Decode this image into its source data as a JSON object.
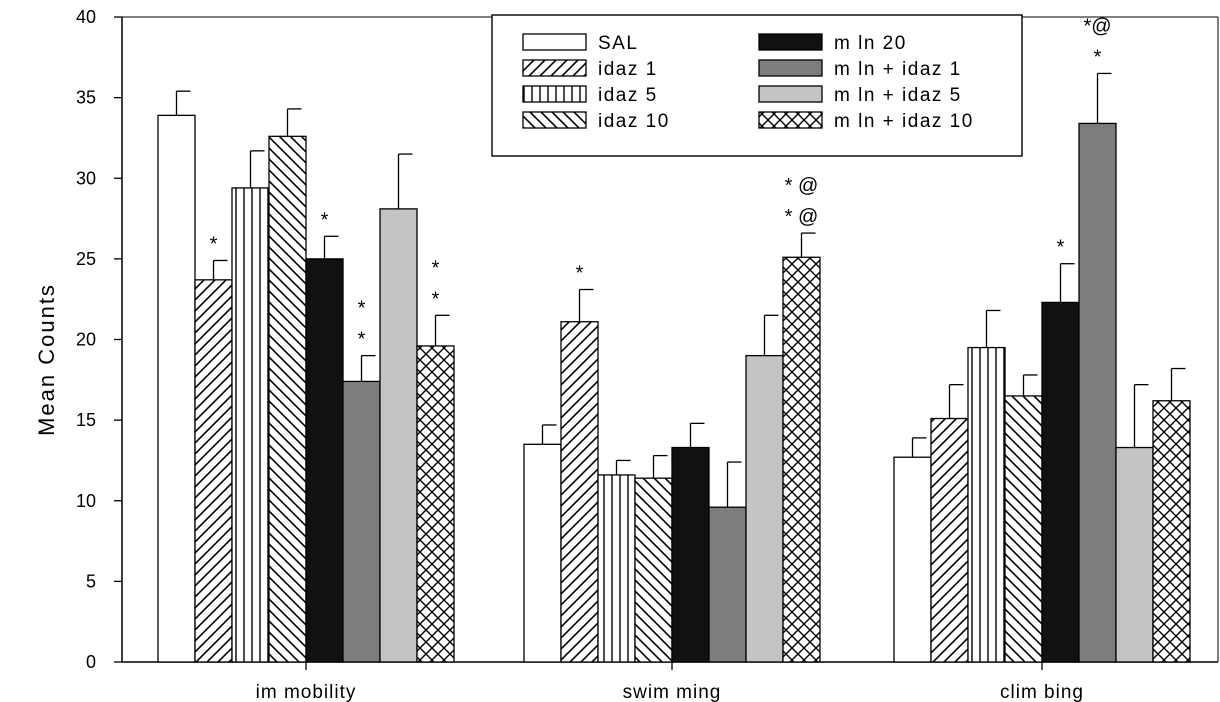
{
  "chart_data": {
    "type": "bar",
    "title": "",
    "xlabel": "",
    "ylabel": "Mean Counts",
    "ylim": [
      0,
      40
    ],
    "yticks": [
      0,
      5,
      10,
      15,
      20,
      25,
      30,
      35,
      40
    ],
    "categories": [
      "im mobility",
      "swim ming",
      "clim bing"
    ],
    "legend_position": "top-right",
    "series": [
      {
        "name": "SAL",
        "pattern": "white",
        "values": [
          33.9,
          13.5,
          12.7
        ],
        "errors": [
          1.5,
          1.2,
          1.2
        ],
        "annotations": [
          "",
          "",
          ""
        ]
      },
      {
        "name": "idaz 1",
        "pattern": "forward-diagonal",
        "values": [
          23.7,
          21.1,
          15.1
        ],
        "errors": [
          1.2,
          2.0,
          2.1
        ],
        "annotations": [
          "*",
          "*",
          ""
        ]
      },
      {
        "name": "idaz 5",
        "pattern": "vertical",
        "values": [
          29.4,
          11.6,
          19.5
        ],
        "errors": [
          2.3,
          0.9,
          2.3
        ],
        "annotations": [
          "",
          "",
          ""
        ]
      },
      {
        "name": "idaz 10",
        "pattern": "backward-diagonal",
        "values": [
          32.6,
          11.4,
          16.5
        ],
        "errors": [
          1.7,
          1.4,
          1.3
        ],
        "annotations": [
          "",
          "",
          ""
        ]
      },
      {
        "name": "m ln 20",
        "pattern": "black",
        "values": [
          25.0,
          13.3,
          22.3
        ],
        "errors": [
          1.4,
          1.5,
          2.4
        ],
        "annotations": [
          "*",
          "",
          "*"
        ]
      },
      {
        "name": "m ln + idaz 1",
        "pattern": "dark-gray",
        "values": [
          17.4,
          9.6,
          33.4
        ],
        "errors": [
          1.6,
          2.8,
          3.1
        ],
        "annotations": [
          "*\n*",
          "",
          "*@\n*"
        ]
      },
      {
        "name": "m ln + idaz 5",
        "pattern": "light-gray",
        "values": [
          28.1,
          19.0,
          13.3
        ],
        "errors": [
          3.4,
          2.5,
          3.9
        ],
        "annotations": [
          "",
          "",
          ""
        ]
      },
      {
        "name": "m ln + idaz 10",
        "pattern": "crosshatch",
        "values": [
          19.6,
          25.1,
          16.2
        ],
        "errors": [
          1.9,
          1.5,
          2.0
        ],
        "annotations": [
          "*\n*",
          "* @\n* @",
          ""
        ]
      }
    ]
  }
}
